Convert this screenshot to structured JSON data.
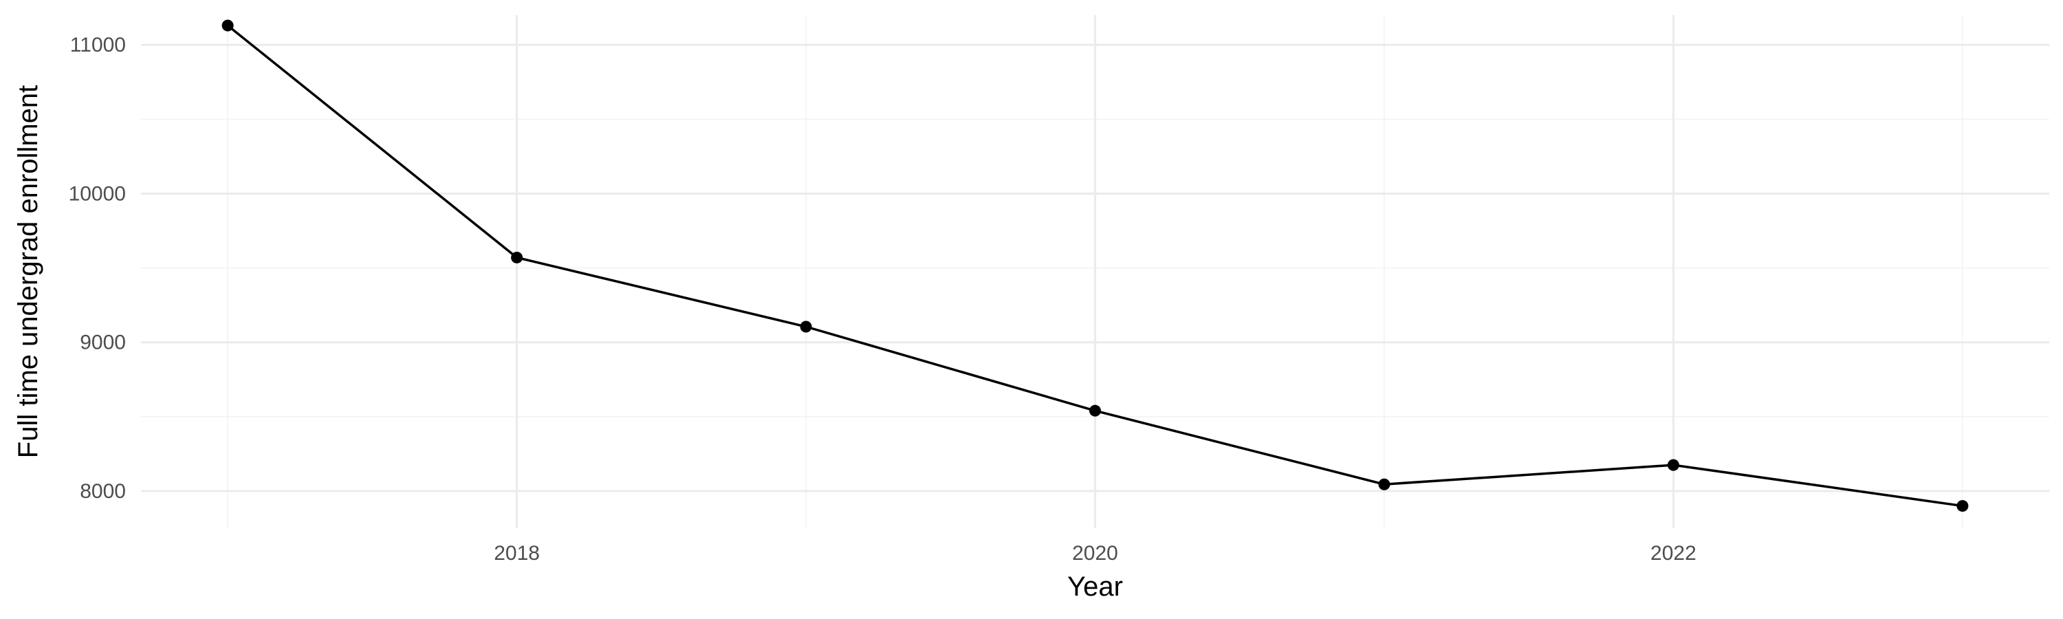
{
  "chart_data": {
    "type": "line",
    "title": "",
    "xlabel": "Year",
    "ylabel": "Full time undergrad enrollment",
    "x": [
      2017,
      2018,
      2019,
      2020,
      2021,
      2022,
      2023
    ],
    "series": [
      {
        "values": [
          11130,
          9570,
          9105,
          8540,
          8045,
          8175,
          7900
        ]
      }
    ],
    "xlim": [
      2016.7,
      2023.3
    ],
    "ylim": [
      7750,
      11200
    ],
    "x_ticks": [
      2018,
      2020,
      2022
    ],
    "x_tick_labels": [
      "2018",
      "2020",
      "2022"
    ],
    "y_ticks": [
      8000,
      9000,
      10000,
      11000
    ],
    "y_tick_labels": [
      "8000",
      "9000",
      "10000",
      "11000"
    ],
    "grid": true,
    "legend": "none",
    "colors": {
      "line": "#000000",
      "points": "#000000",
      "grid_major": "#ebebeb",
      "grid_minor": "#f2f2f2",
      "tick_text": "#4d4d4d"
    }
  }
}
